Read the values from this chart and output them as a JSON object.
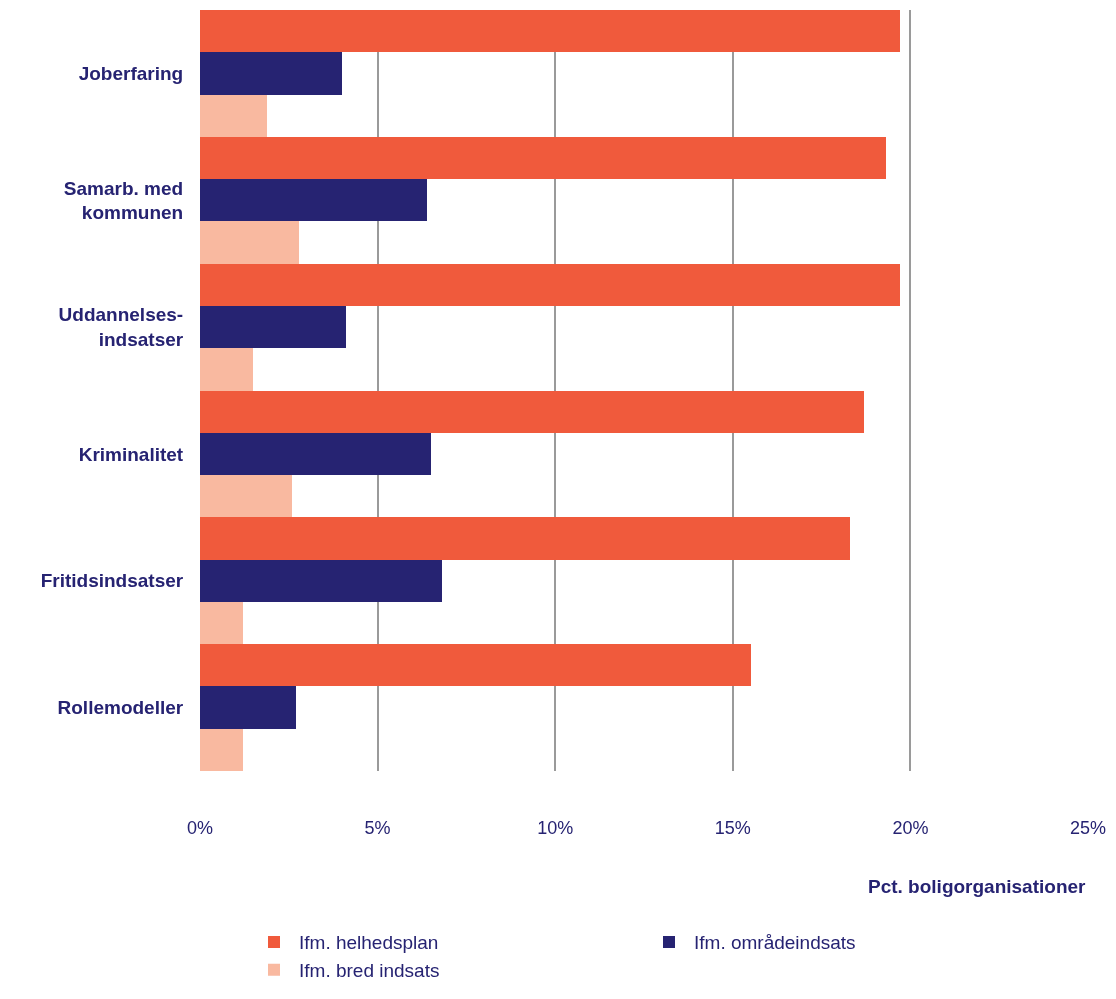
{
  "chart_data": {
    "type": "bar",
    "orientation": "horizontal",
    "xlabel": "Pct. boligorganisationer",
    "categories": [
      "Joberfaring",
      "Samarb. med\nkommunen",
      "Uddannelses-\nindsatser",
      "Kriminalitet",
      "Fritidsindsatser",
      "Rollemodeller"
    ],
    "series": [
      {
        "name": "Ifm. helhedsplan",
        "color": "#f05a3c",
        "values": [
          19.7,
          19.3,
          19.7,
          18.7,
          18.3,
          15.5
        ]
      },
      {
        "name": "Ifm. områdeindsats",
        "color": "#262372",
        "values": [
          4.0,
          6.4,
          4.1,
          6.5,
          6.8,
          2.7
        ]
      },
      {
        "name": "Ifm. bred indsats",
        "color": "#f9b9a0",
        "values": [
          1.9,
          2.8,
          1.5,
          2.6,
          1.2,
          1.2
        ]
      }
    ],
    "xlim": [
      0,
      25
    ],
    "xticks": [
      {
        "value": 0,
        "label": "0%"
      },
      {
        "value": 5,
        "label": "5%"
      },
      {
        "value": 10,
        "label": "10%"
      },
      {
        "value": 15,
        "label": "15%"
      },
      {
        "value": 20,
        "label": "20%"
      },
      {
        "value": 25,
        "label": "25%"
      }
    ],
    "grid": "x",
    "legend": "bottom"
  }
}
